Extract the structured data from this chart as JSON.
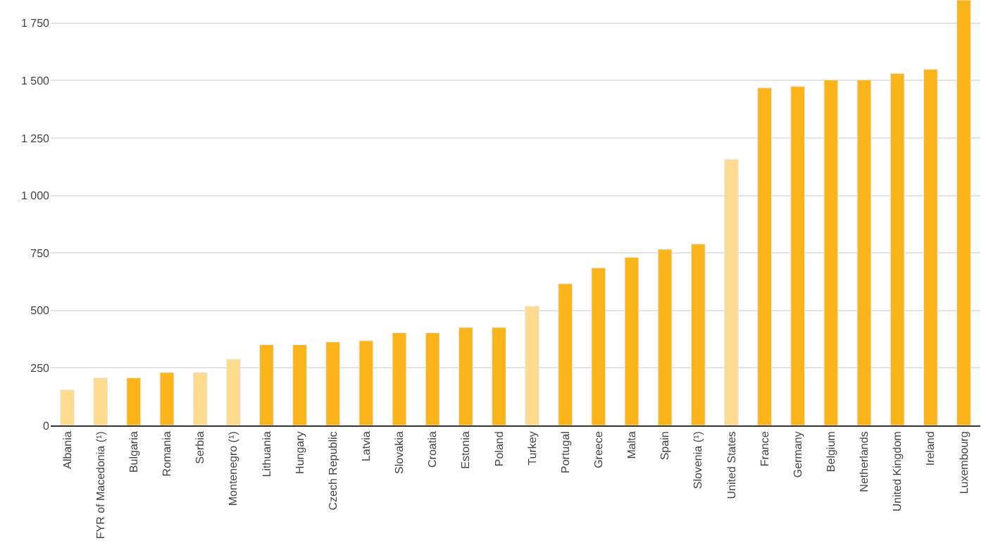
{
  "chart_data": {
    "type": "bar",
    "categories": [
      "Albania",
      "FYR of Macedonia (¹)",
      "Bulgaria",
      "Romania",
      "Serbia",
      "Montenegro (¹)",
      "Lithuania",
      "Hungary",
      "Czech Republic",
      "Latvia",
      "Slovakia",
      "Croatia",
      "Estonia",
      "Poland",
      "Turkey",
      "Portugal",
      "Greece",
      "Malta",
      "Spain",
      "Slovenia (¹)",
      "United States",
      "France",
      "Germany",
      "Belgium",
      "Netherlands",
      "United Kingdom",
      "Ireland",
      "Luxembourg"
    ],
    "values": [
      155,
      207,
      207,
      230,
      230,
      288,
      351,
      351,
      363,
      368,
      403,
      403,
      426,
      426,
      518,
      616,
      685,
      731,
      766,
      789,
      1157,
      1468,
      1474,
      1503,
      1503,
      1531,
      1549,
      1850
    ],
    "colors": [
      "#fddc8f",
      "#fddc8f",
      "#fbb41a",
      "#fbb41a",
      "#fddc8f",
      "#fddc8f",
      "#fbb41a",
      "#fbb41a",
      "#fbb41a",
      "#fbb41a",
      "#fbb41a",
      "#fbb41a",
      "#fbb41a",
      "#fbb41a",
      "#fddc8f",
      "#fbb41a",
      "#fbb41a",
      "#fbb41a",
      "#fbb41a",
      "#fbb41a",
      "#fddc8f",
      "#fbb41a",
      "#fbb41a",
      "#fbb41a",
      "#fbb41a",
      "#fbb41a",
      "#fbb41a",
      "#fbb41a"
    ],
    "ylim": [
      0,
      1850
    ],
    "yticks": [
      0,
      250,
      500,
      750,
      {
        "value": 1000,
        "label": "1 000"
      },
      {
        "value": 1250,
        "label": "1 250"
      },
      {
        "value": 1500,
        "label": "1 500"
      },
      {
        "value": 1750,
        "label": "1 750"
      }
    ],
    "grid": "y"
  }
}
